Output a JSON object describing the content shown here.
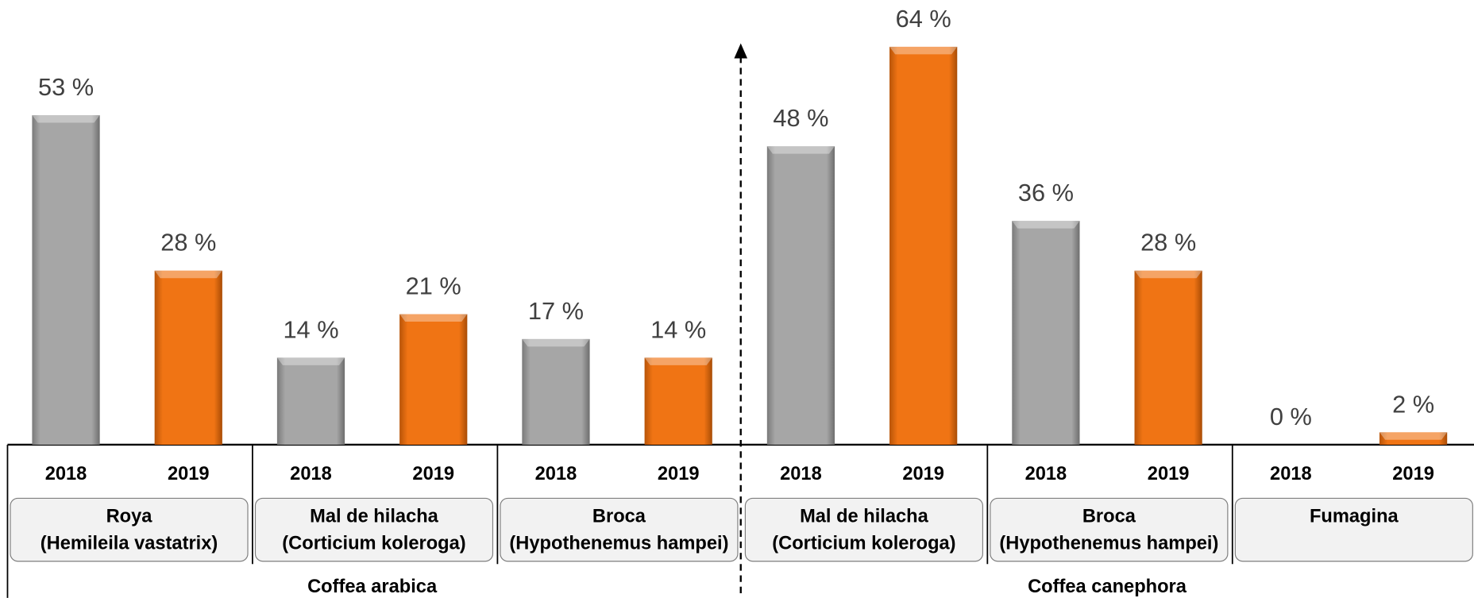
{
  "chart_data": {
    "type": "bar",
    "categories": [
      "2018",
      "2019",
      "2018",
      "2019",
      "2018",
      "2019",
      "2018",
      "2019",
      "2018",
      "2019",
      "2018",
      "2019"
    ],
    "values": [
      53,
      28,
      14,
      21,
      17,
      14,
      48,
      64,
      36,
      28,
      0,
      2
    ],
    "value_labels": [
      "53 %",
      "28 %",
      "14 %",
      "21 %",
      "17 %",
      "14 %",
      "48 %",
      "64 %",
      "36 %",
      "28 %",
      "0 %",
      "2 %"
    ],
    "colors": [
      "#a6a6a6",
      "#f07414",
      "#a6a6a6",
      "#f07414",
      "#a6a6a6",
      "#f07414",
      "#a6a6a6",
      "#f07414",
      "#a6a6a6",
      "#f07414",
      "#a6a6a6",
      "#f07414"
    ],
    "groups": [
      {
        "label": [
          "Roya",
          "(Hemileila vastatrix)"
        ]
      },
      {
        "label": [
          "Mal de hilacha",
          "(Corticium koleroga)"
        ]
      },
      {
        "label": [
          "Broca",
          "(Hypothenemus hampei)"
        ]
      },
      {
        "label": [
          "Mal de hilacha",
          "(Corticium koleroga)"
        ]
      },
      {
        "label": [
          "Broca",
          "(Hypothenemus hampei)"
        ]
      },
      {
        "label": [
          "Fumagina"
        ]
      }
    ],
    "species": [
      {
        "label": "Coffea arabica"
      },
      {
        "label": "Coffea canephora"
      }
    ],
    "ylim": [
      0,
      70
    ]
  }
}
